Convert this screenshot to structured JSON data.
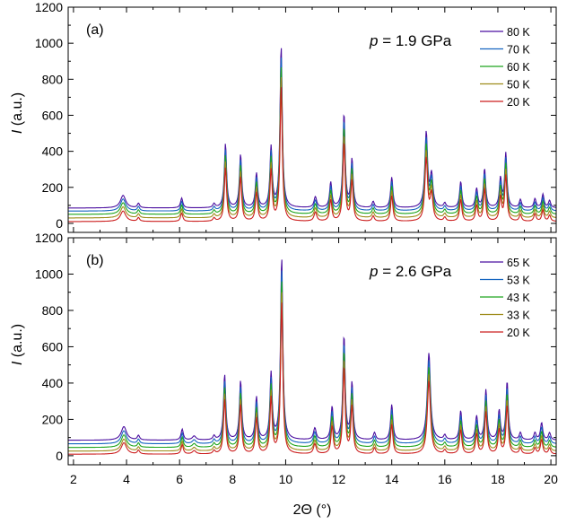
{
  "figure": {
    "xlabel": "2Θ (°)",
    "ylabel_var": "I",
    "ylabel_unit": " (a.u.)"
  },
  "chart_data": [
    {
      "type": "line",
      "panel_label": "(a)",
      "pressure_var": "p",
      "pressure_text": " = 1.9 GPa",
      "xlim": [
        1.8,
        20.2
      ],
      "ylim": [
        -50,
        1200
      ],
      "xticks": [
        2,
        4,
        6,
        8,
        10,
        12,
        14,
        16,
        18,
        20
      ],
      "yticks": [
        0,
        200,
        400,
        600,
        800,
        1000,
        1200
      ],
      "legend_position": "top-right",
      "peaks": [
        {
          "x": 3.87,
          "h": 70,
          "w": 0.12
        },
        {
          "x": 4.45,
          "h": 25,
          "w": 0.05
        },
        {
          "x": 6.08,
          "h": 55,
          "w": 0.05
        },
        {
          "x": 7.3,
          "h": 22,
          "w": 0.05
        },
        {
          "x": 7.73,
          "h": 355,
          "w": 0.05
        },
        {
          "x": 8.3,
          "h": 295,
          "w": 0.05
        },
        {
          "x": 8.9,
          "h": 190,
          "w": 0.05
        },
        {
          "x": 9.45,
          "h": 335,
          "w": 0.05
        },
        {
          "x": 9.83,
          "h": 895,
          "w": 0.05
        },
        {
          "x": 11.12,
          "h": 60,
          "w": 0.06
        },
        {
          "x": 11.7,
          "h": 140,
          "w": 0.05
        },
        {
          "x": 12.2,
          "h": 520,
          "w": 0.05
        },
        {
          "x": 12.5,
          "h": 265,
          "w": 0.05
        },
        {
          "x": 13.3,
          "h": 35,
          "w": 0.05
        },
        {
          "x": 14.0,
          "h": 170,
          "w": 0.05
        },
        {
          "x": 15.3,
          "h": 415,
          "w": 0.06
        },
        {
          "x": 15.5,
          "h": 175,
          "w": 0.06
        },
        {
          "x": 16.0,
          "h": 25,
          "w": 0.05
        },
        {
          "x": 16.6,
          "h": 145,
          "w": 0.05
        },
        {
          "x": 17.2,
          "h": 105,
          "w": 0.05
        },
        {
          "x": 17.5,
          "h": 215,
          "w": 0.05
        },
        {
          "x": 18.1,
          "h": 160,
          "w": 0.05
        },
        {
          "x": 18.3,
          "h": 300,
          "w": 0.05
        },
        {
          "x": 18.85,
          "h": 45,
          "w": 0.05
        },
        {
          "x": 19.4,
          "h": 50,
          "w": 0.05
        },
        {
          "x": 19.7,
          "h": 75,
          "w": 0.05
        },
        {
          "x": 19.95,
          "h": 40,
          "w": 0.05
        }
      ],
      "series": [
        {
          "name": "80 K",
          "color": "#4b0fa0",
          "baseline": 85
        },
        {
          "name": "70 K",
          "color": "#1565c0",
          "baseline": 68
        },
        {
          "name": "60 K",
          "color": "#1ea51e",
          "baseline": 50
        },
        {
          "name": "50 K",
          "color": "#9e8c1a",
          "baseline": 30
        },
        {
          "name": "20 K",
          "color": "#cc1f1f",
          "baseline": 10
        }
      ]
    },
    {
      "type": "line",
      "panel_label": "(b)",
      "pressure_var": "p",
      "pressure_text": " = 2.6 GPa",
      "xlim": [
        1.8,
        20.2
      ],
      "ylim": [
        -50,
        1200
      ],
      "xticks": [
        2,
        4,
        6,
        8,
        10,
        12,
        14,
        16,
        18,
        20
      ],
      "yticks": [
        0,
        200,
        400,
        600,
        800,
        1000,
        1200
      ],
      "legend_position": "top-right",
      "peaks": [
        {
          "x": 3.9,
          "h": 75,
          "w": 0.12
        },
        {
          "x": 4.45,
          "h": 25,
          "w": 0.05
        },
        {
          "x": 6.1,
          "h": 60,
          "w": 0.05
        },
        {
          "x": 6.55,
          "h": 22,
          "w": 0.08
        },
        {
          "x": 7.3,
          "h": 22,
          "w": 0.05
        },
        {
          "x": 7.7,
          "h": 360,
          "w": 0.05
        },
        {
          "x": 8.3,
          "h": 325,
          "w": 0.05
        },
        {
          "x": 8.9,
          "h": 235,
          "w": 0.05
        },
        {
          "x": 9.45,
          "h": 365,
          "w": 0.05
        },
        {
          "x": 9.85,
          "h": 1005,
          "w": 0.05
        },
        {
          "x": 11.1,
          "h": 65,
          "w": 0.06
        },
        {
          "x": 11.75,
          "h": 180,
          "w": 0.05
        },
        {
          "x": 12.2,
          "h": 570,
          "w": 0.05
        },
        {
          "x": 12.5,
          "h": 310,
          "w": 0.05
        },
        {
          "x": 13.35,
          "h": 40,
          "w": 0.05
        },
        {
          "x": 14.0,
          "h": 195,
          "w": 0.05
        },
        {
          "x": 15.4,
          "h": 480,
          "w": 0.07
        },
        {
          "x": 16.0,
          "h": 25,
          "w": 0.05
        },
        {
          "x": 16.6,
          "h": 160,
          "w": 0.05
        },
        {
          "x": 17.2,
          "h": 130,
          "w": 0.05
        },
        {
          "x": 17.55,
          "h": 275,
          "w": 0.05
        },
        {
          "x": 18.05,
          "h": 160,
          "w": 0.05
        },
        {
          "x": 18.35,
          "h": 320,
          "w": 0.05
        },
        {
          "x": 18.85,
          "h": 40,
          "w": 0.05
        },
        {
          "x": 19.4,
          "h": 40,
          "w": 0.05
        },
        {
          "x": 19.65,
          "h": 95,
          "w": 0.05
        },
        {
          "x": 19.95,
          "h": 40,
          "w": 0.05
        }
      ],
      "series": [
        {
          "name": "65 K",
          "color": "#4b0fa0",
          "baseline": 85
        },
        {
          "name": "53 K",
          "color": "#1565c0",
          "baseline": 65
        },
        {
          "name": "43 K",
          "color": "#1ea51e",
          "baseline": 45
        },
        {
          "name": "33 K",
          "color": "#9e8c1a",
          "baseline": 25
        },
        {
          "name": "20 K",
          "color": "#cc1f1f",
          "baseline": 8
        }
      ]
    }
  ]
}
